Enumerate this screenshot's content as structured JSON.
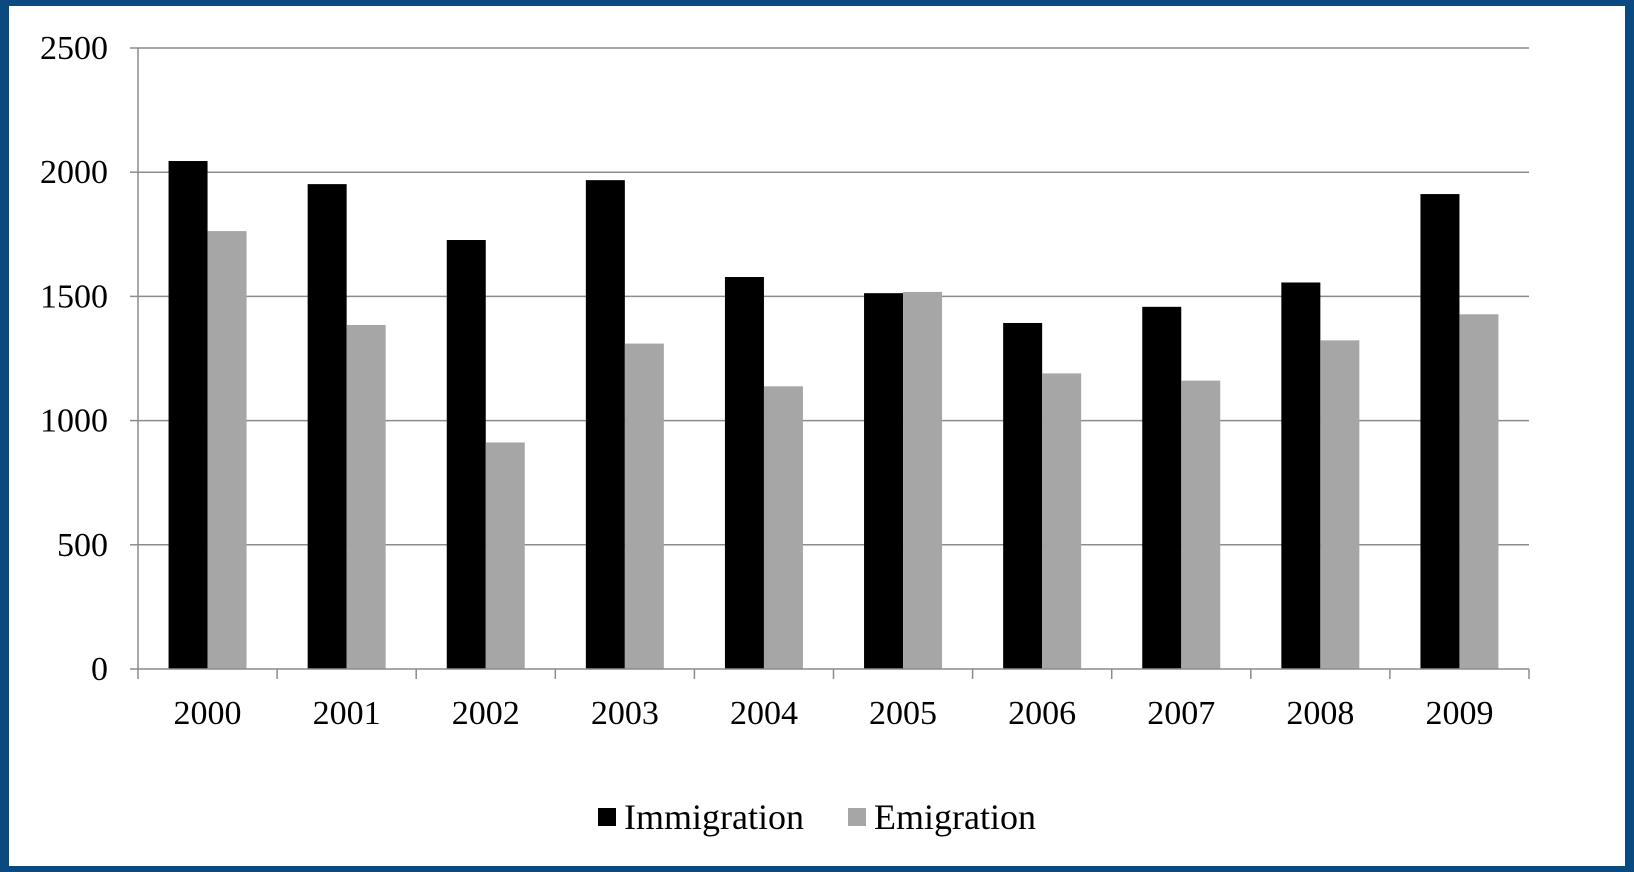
{
  "chart_data": {
    "type": "bar",
    "categories": [
      "2000",
      "2001",
      "2002",
      "2003",
      "2004",
      "2005",
      "2006",
      "2007",
      "2008",
      "2009"
    ],
    "series": [
      {
        "name": "Immigration",
        "color": "#000000",
        "values": [
          2045,
          1952,
          1727,
          1968,
          1578,
          1513,
          1393,
          1458,
          1556,
          1912
        ]
      },
      {
        "name": "Emigration",
        "color": "#a6a6a6",
        "values": [
          1763,
          1385,
          912,
          1310,
          1138,
          1518,
          1190,
          1161,
          1323,
          1428
        ]
      }
    ],
    "yticks": [
      "0",
      "500",
      "1000",
      "1500",
      "2000",
      "2500"
    ],
    "ylim": [
      0,
      2500
    ],
    "grid": true,
    "legend": "bottom",
    "title": "",
    "xlabel": "",
    "ylabel": ""
  }
}
